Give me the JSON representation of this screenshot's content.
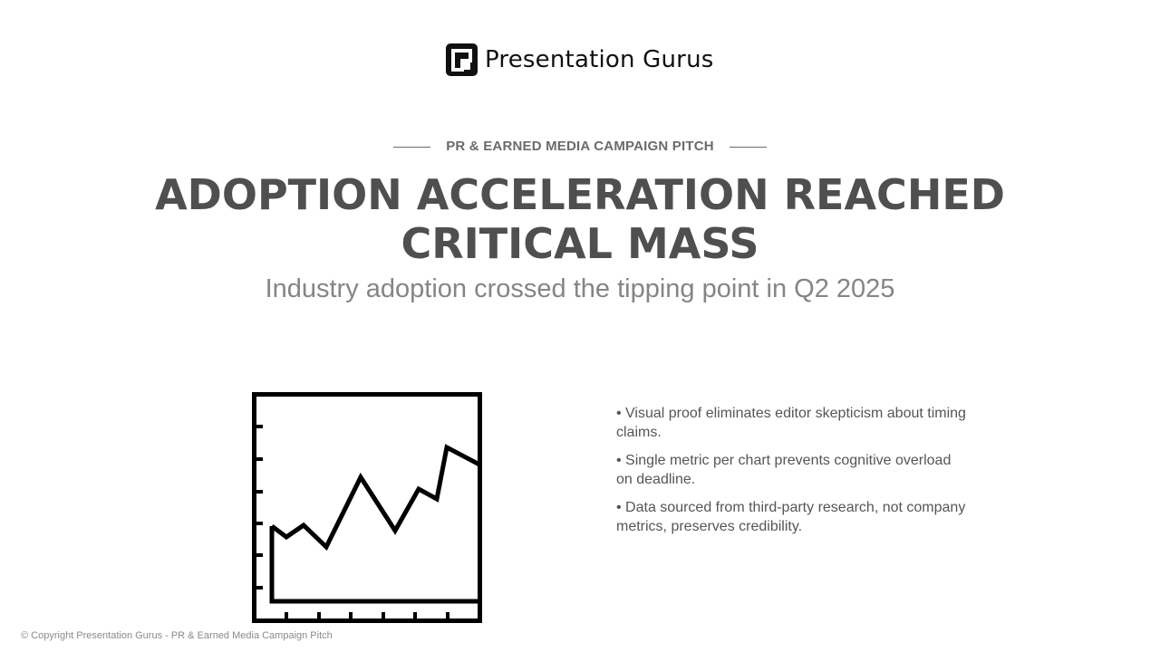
{
  "brand": {
    "name": "Presentation Gurus"
  },
  "slide": {
    "kicker": "PR & EARNED MEDIA CAMPAIGN PITCH",
    "title": "ADOPTION ACCELERATION REACHED CRITICAL MASS",
    "subtitle": "Industry adoption crossed the tipping point in Q2 2025",
    "illustration": "line-chart-icon",
    "bullets": [
      "• Visual proof eliminates editor skepticism about timing claims.",
      "• Single metric per chart prevents cognitive overload on deadline.",
      "• Data sourced from third-party research, not company metrics, preserves credibility."
    ]
  },
  "footer": {
    "copyright": "© Copyright Presentation Gurus - PR & Earned Media Campaign Pitch"
  },
  "colors": {
    "title": "#4f4f4f",
    "subtitle": "#858585",
    "body": "#555555",
    "kicker": "#6b6b6b"
  }
}
